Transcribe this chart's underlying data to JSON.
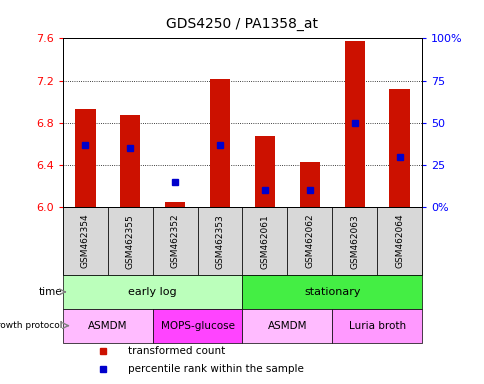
{
  "title": "GDS4250 / PA1358_at",
  "samples": [
    "GSM462354",
    "GSM462355",
    "GSM462352",
    "GSM462353",
    "GSM462061",
    "GSM462062",
    "GSM462063",
    "GSM462064"
  ],
  "transformed_count": [
    6.93,
    6.87,
    6.05,
    7.22,
    6.68,
    6.43,
    7.58,
    7.12
  ],
  "percentile_rank": [
    37,
    35,
    15,
    37,
    10,
    10,
    50,
    30
  ],
  "y_min": 6.0,
  "y_max": 7.6,
  "y_ticks": [
    6.0,
    6.4,
    6.8,
    7.2,
    7.6
  ],
  "right_y_ticks": [
    0,
    25,
    50,
    75,
    100
  ],
  "right_y_labels": [
    "0%",
    "25",
    "50",
    "75",
    "100%"
  ],
  "bar_color": "#cc1100",
  "blue_color": "#0000cc",
  "time_groups": [
    {
      "label": "early log",
      "start": 0,
      "end": 4,
      "color": "#bbffbb"
    },
    {
      "label": "stationary",
      "start": 4,
      "end": 8,
      "color": "#44ee44"
    }
  ],
  "protocol_groups": [
    {
      "label": "ASMDM",
      "start": 0,
      "end": 2,
      "color": "#ffbbff"
    },
    {
      "label": "MOPS-glucose",
      "start": 2,
      "end": 4,
      "color": "#ff44ff"
    },
    {
      "label": "ASMDM",
      "start": 4,
      "end": 6,
      "color": "#ffbbff"
    },
    {
      "label": "Luria broth",
      "start": 6,
      "end": 8,
      "color": "#ff99ff"
    }
  ],
  "legend_red_label": "transformed count",
  "legend_blue_label": "percentile rank within the sample",
  "bg_color": "#d8d8d8"
}
